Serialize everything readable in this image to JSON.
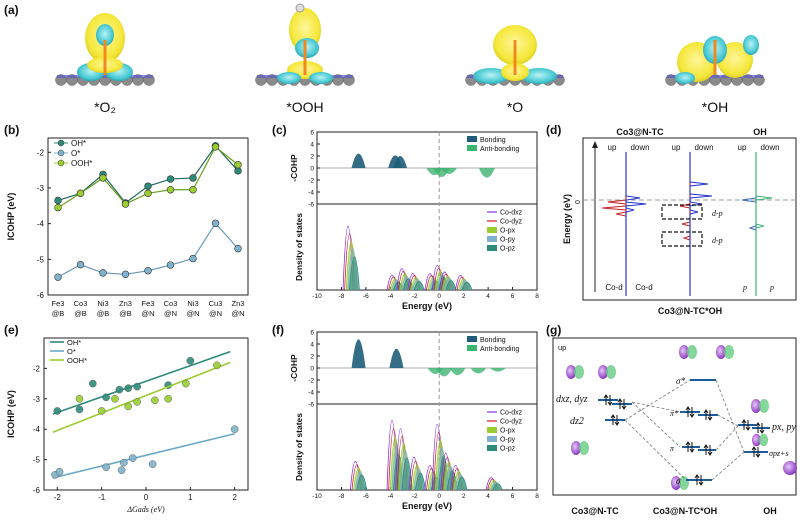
{
  "panel_labels": {
    "a": "(a)",
    "b": "(b)",
    "c": "(c)",
    "d": "(d)",
    "e": "(e)",
    "f": "(f)",
    "g": "(g)"
  },
  "structures": [
    {
      "label": "*O₂"
    },
    {
      "label": "*OOH"
    },
    {
      "label": "*O"
    },
    {
      "label": "*OH"
    }
  ],
  "colors": {
    "oh": "#2e8b7a",
    "o": "#7fb2cc",
    "ooh": "#9acd32",
    "bonding": "#1f5d7a",
    "antibonding": "#3cb371",
    "cod": "#cc2222",
    "codblue": "#2233cc",
    "yellow": "#f5e83c",
    "cyan": "#46c8d2"
  },
  "chart_data": [
    {
      "id": "b",
      "type": "line",
      "ylabel": "ICOHP (eV)",
      "ylim": [
        -6,
        -1.6
      ],
      "yticks": [
        -6,
        -5,
        -4,
        -3,
        -2
      ],
      "categories": [
        "Fe3 @B",
        "Co3 @B",
        "Ni3 @B",
        "Zn3 @B",
        "Fe3 @N",
        "Co3 @N",
        "Ni3 @N",
        "Cu3 @N",
        "Zn3 @N"
      ],
      "series": [
        {
          "name": "OH*",
          "values": [
            -3.35,
            -3.15,
            -2.62,
            -3.42,
            -2.95,
            -2.75,
            -2.72,
            -1.82,
            -2.52
          ]
        },
        {
          "name": "O*",
          "values": [
            -5.5,
            -5.15,
            -5.38,
            -5.42,
            -5.32,
            -5.16,
            -4.98,
            -3.99,
            -4.7
          ]
        },
        {
          "name": "OOH*",
          "values": [
            -3.55,
            -3.15,
            -2.72,
            -3.45,
            -3.15,
            -3.05,
            -3.05,
            -1.85,
            -2.35
          ]
        }
      ]
    },
    {
      "id": "c",
      "type": "area",
      "top": {
        "ylabel": "-COHP",
        "ylim": [
          -6,
          6
        ],
        "yticks": [
          -6,
          -4,
          -2,
          0,
          2,
          4,
          6
        ],
        "legend": [
          "Bonding",
          "Anti-bonding"
        ],
        "bonding_peaks": [
          {
            "x": -6.6,
            "h": 2.4
          },
          {
            "x": -3.6,
            "h": 2.1
          },
          {
            "x": -3.2,
            "h": 2.0
          }
        ],
        "antibonding_peaks": [
          {
            "x": -0.4,
            "h": 1.2
          },
          {
            "x": 0.2,
            "h": 1.5
          },
          {
            "x": 0.8,
            "h": 1.0
          },
          {
            "x": 3.9,
            "h": 1.6
          }
        ]
      },
      "bottom": {
        "ylabel": "Density of states",
        "legend": [
          "Co-dxz",
          "Co-dyz",
          "O-px",
          "O-py",
          "O-pz"
        ],
        "peaks": [
          {
            "x": -7.2,
            "h": 0.78
          },
          {
            "x": -3.6,
            "h": 0.18
          },
          {
            "x": -2.8,
            "h": 0.26
          },
          {
            "x": -1.9,
            "h": 0.2
          },
          {
            "x": -0.5,
            "h": 0.2
          },
          {
            "x": 0.1,
            "h": 0.3
          },
          {
            "x": 0.7,
            "h": 0.22
          },
          {
            "x": 2.0,
            "h": 0.18
          }
        ]
      },
      "xlabel": "Energy (eV)",
      "xlim": [
        -10,
        8
      ],
      "xticks": [
        -10,
        -8,
        -6,
        -4,
        -2,
        0,
        2,
        4,
        6,
        8
      ]
    },
    {
      "id": "d",
      "type": "line",
      "title_left": "Co3@N-TC",
      "title_right": "OH",
      "col_labels": [
        "up",
        "down",
        "up",
        "down",
        "up",
        "down"
      ],
      "ylabel": "Energy (eV)",
      "zero_label": "0",
      "annotations": [
        "d-p",
        "d-p"
      ],
      "bottom_labels": [
        "Co-d",
        "Co-d",
        "p",
        "p"
      ],
      "caption": "Co3@N-TC*OH"
    },
    {
      "id": "e",
      "type": "scatter",
      "ylabel": "ICOHP (eV)",
      "xlabel": "ΔGads (eV)",
      "xlim": [
        -2.3,
        2.3
      ],
      "ylim": [
        -6,
        -1
      ],
      "xticks": [
        -2,
        -1,
        0,
        1,
        2
      ],
      "yticks": [
        -6,
        -5,
        -4,
        -3,
        -2
      ],
      "series": [
        {
          "name": "OH*",
          "points": [
            [
              -2.0,
              -3.4
            ],
            [
              -1.5,
              -3.35
            ],
            [
              -1.2,
              -2.5
            ],
            [
              -0.9,
              -2.95
            ],
            [
              -0.6,
              -2.7
            ],
            [
              -0.4,
              -2.65
            ],
            [
              -0.2,
              -2.6
            ],
            [
              0.5,
              -2.55
            ],
            [
              1.0,
              -1.75
            ]
          ],
          "fit": [
            [
              -2.1,
              -3.5
            ],
            [
              1.9,
              -1.45
            ]
          ]
        },
        {
          "name": "O*",
          "points": [
            [
              -2.05,
              -5.5
            ],
            [
              -1.95,
              -5.4
            ],
            [
              -0.9,
              -5.25
            ],
            [
              -0.55,
              -5.35
            ],
            [
              -0.5,
              -5.1
            ],
            [
              -0.3,
              -4.95
            ],
            [
              0.15,
              -5.15
            ],
            [
              2.0,
              -4.0
            ]
          ],
          "fit": [
            [
              -2.1,
              -5.6
            ],
            [
              2.0,
              -4.15
            ]
          ]
        },
        {
          "name": "OOH*",
          "points": [
            [
              -1.5,
              -3.0
            ],
            [
              -1.0,
              -3.4
            ],
            [
              -0.7,
              -3.0
            ],
            [
              -0.4,
              -3.25
            ],
            [
              -0.2,
              -3.1
            ],
            [
              0.2,
              -3.05
            ],
            [
              0.5,
              -3.0
            ],
            [
              0.9,
              -2.5
            ],
            [
              1.6,
              -1.9
            ]
          ],
          "fit": [
            [
              -2.1,
              -4.1
            ],
            [
              1.9,
              -1.8
            ]
          ]
        }
      ]
    },
    {
      "id": "f",
      "type": "area",
      "top": {
        "ylabel": "-COHP",
        "ylim": [
          -6,
          6
        ],
        "yticks": [
          -6,
          -4,
          -2,
          0,
          2,
          4,
          6
        ],
        "legend": [
          "Bonding",
          "Anti-bonding"
        ],
        "bonding_peaks": [
          {
            "x": -6.6,
            "h": 4.8
          },
          {
            "x": -3.5,
            "h": 3.2
          }
        ],
        "antibonding_peaks": [
          {
            "x": -0.3,
            "h": 1.0
          },
          {
            "x": 0.4,
            "h": 1.4
          },
          {
            "x": 1.5,
            "h": 1.2
          },
          {
            "x": 3.2,
            "h": 0.9
          },
          {
            "x": 4.8,
            "h": 0.6
          }
        ]
      },
      "bottom": {
        "ylabel": "Density of states",
        "legend": [
          "Co-dxz",
          "Co-dyz",
          "O-px",
          "O-py",
          "O-pz"
        ],
        "peaks": [
          {
            "x": -6.6,
            "h": 0.35
          },
          {
            "x": -3.6,
            "h": 0.85
          },
          {
            "x": -2.9,
            "h": 0.75
          },
          {
            "x": -1.8,
            "h": 0.4
          },
          {
            "x": -0.5,
            "h": 0.3
          },
          {
            "x": 0.1,
            "h": 0.8
          },
          {
            "x": 0.8,
            "h": 0.45
          },
          {
            "x": 1.6,
            "h": 0.3
          },
          {
            "x": 4.5,
            "h": 0.15
          }
        ]
      },
      "xlabel": "Energy (eV)",
      "xlim": [
        -10,
        8
      ],
      "xticks": [
        -10,
        -8,
        -6,
        -4,
        -2,
        0,
        2,
        4,
        6,
        8
      ]
    },
    {
      "id": "g",
      "type": "other",
      "up_label": "up",
      "left_orbitals": [
        "dxz, dyz",
        "dz2"
      ],
      "mid_orbitals": [
        "σ*",
        "π*",
        "π",
        "σ"
      ],
      "right_orbitals": [
        "px, py",
        "σpz+s"
      ],
      "captions": [
        "Co3@N-TC",
        "Co3@N-TC*OH",
        "OH"
      ]
    }
  ]
}
